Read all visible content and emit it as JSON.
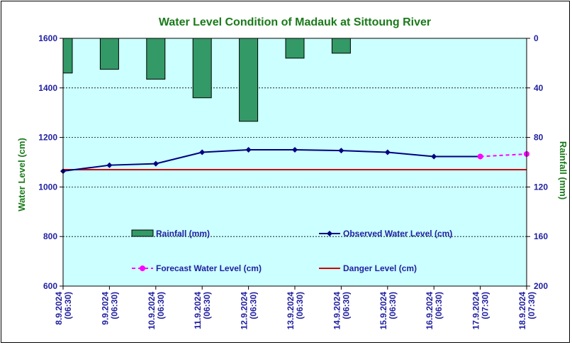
{
  "chart_data": {
    "type": "bar+line",
    "title": "Water Level Condition of Madauk at Sittoung River",
    "ylabel_left": "Water Level (cm)",
    "ylabel_right": "Rainfall (mm)",
    "ylim_left": [
      600,
      1600
    ],
    "yticks_left": [
      "600",
      "800",
      "1000",
      "1200",
      "1400",
      "1600"
    ],
    "ylim_right": [
      0,
      200
    ],
    "right_axis_inverted": true,
    "yticks_right": [
      "0",
      "40",
      "80",
      "120",
      "160",
      "200"
    ],
    "grid": true,
    "categories": [
      {
        "date": "8.9.2024",
        "time": "(06:30)"
      },
      {
        "date": "9.9.2024",
        "time": "(06:30)"
      },
      {
        "date": "10.9.2024",
        "time": "(06:30)"
      },
      {
        "date": "11.9.2024",
        "time": "(06:30)"
      },
      {
        "date": "12.9.2024",
        "time": "(06:30)"
      },
      {
        "date": "13.9.2024",
        "time": "(06:30)"
      },
      {
        "date": "14.9.2024",
        "time": "(06:30)"
      },
      {
        "date": "15.9.2024",
        "time": "(06:30)"
      },
      {
        "date": "16.9.2024",
        "time": "(06:30)"
      },
      {
        "date": "17.9.2024",
        "time": "(07:30)"
      },
      {
        "date": "18.9.2024",
        "time": "(07:30)"
      }
    ],
    "series": [
      {
        "name": "Rainfall (mm)",
        "kind": "bar",
        "axis": "right",
        "color": "#339966",
        "values": [
          28,
          25,
          33,
          48,
          67,
          16,
          12,
          null,
          null,
          null,
          null
        ]
      },
      {
        "name": "Observed Water Level (cm)",
        "kind": "line",
        "axis": "left",
        "color": "#000080",
        "values": [
          1064,
          1088,
          1094,
          1140,
          1150,
          1150,
          1147,
          1140,
          1123,
          1123,
          null
        ]
      },
      {
        "name": "Forecast Water Level (cm)",
        "kind": "line-dashed",
        "axis": "left",
        "color": "#ff00ff",
        "values": [
          null,
          null,
          null,
          null,
          null,
          null,
          null,
          null,
          null,
          1123,
          1133
        ]
      },
      {
        "name": "Danger Level (cm)",
        "kind": "hline",
        "axis": "left",
        "color": "#cc0000",
        "value": 1070
      }
    ],
    "legend_placement": "inside-bottom"
  },
  "colors": {
    "plot_background": "#ccffff",
    "title": "#1a7a1a",
    "tick_labels": "#1f1fa0"
  }
}
